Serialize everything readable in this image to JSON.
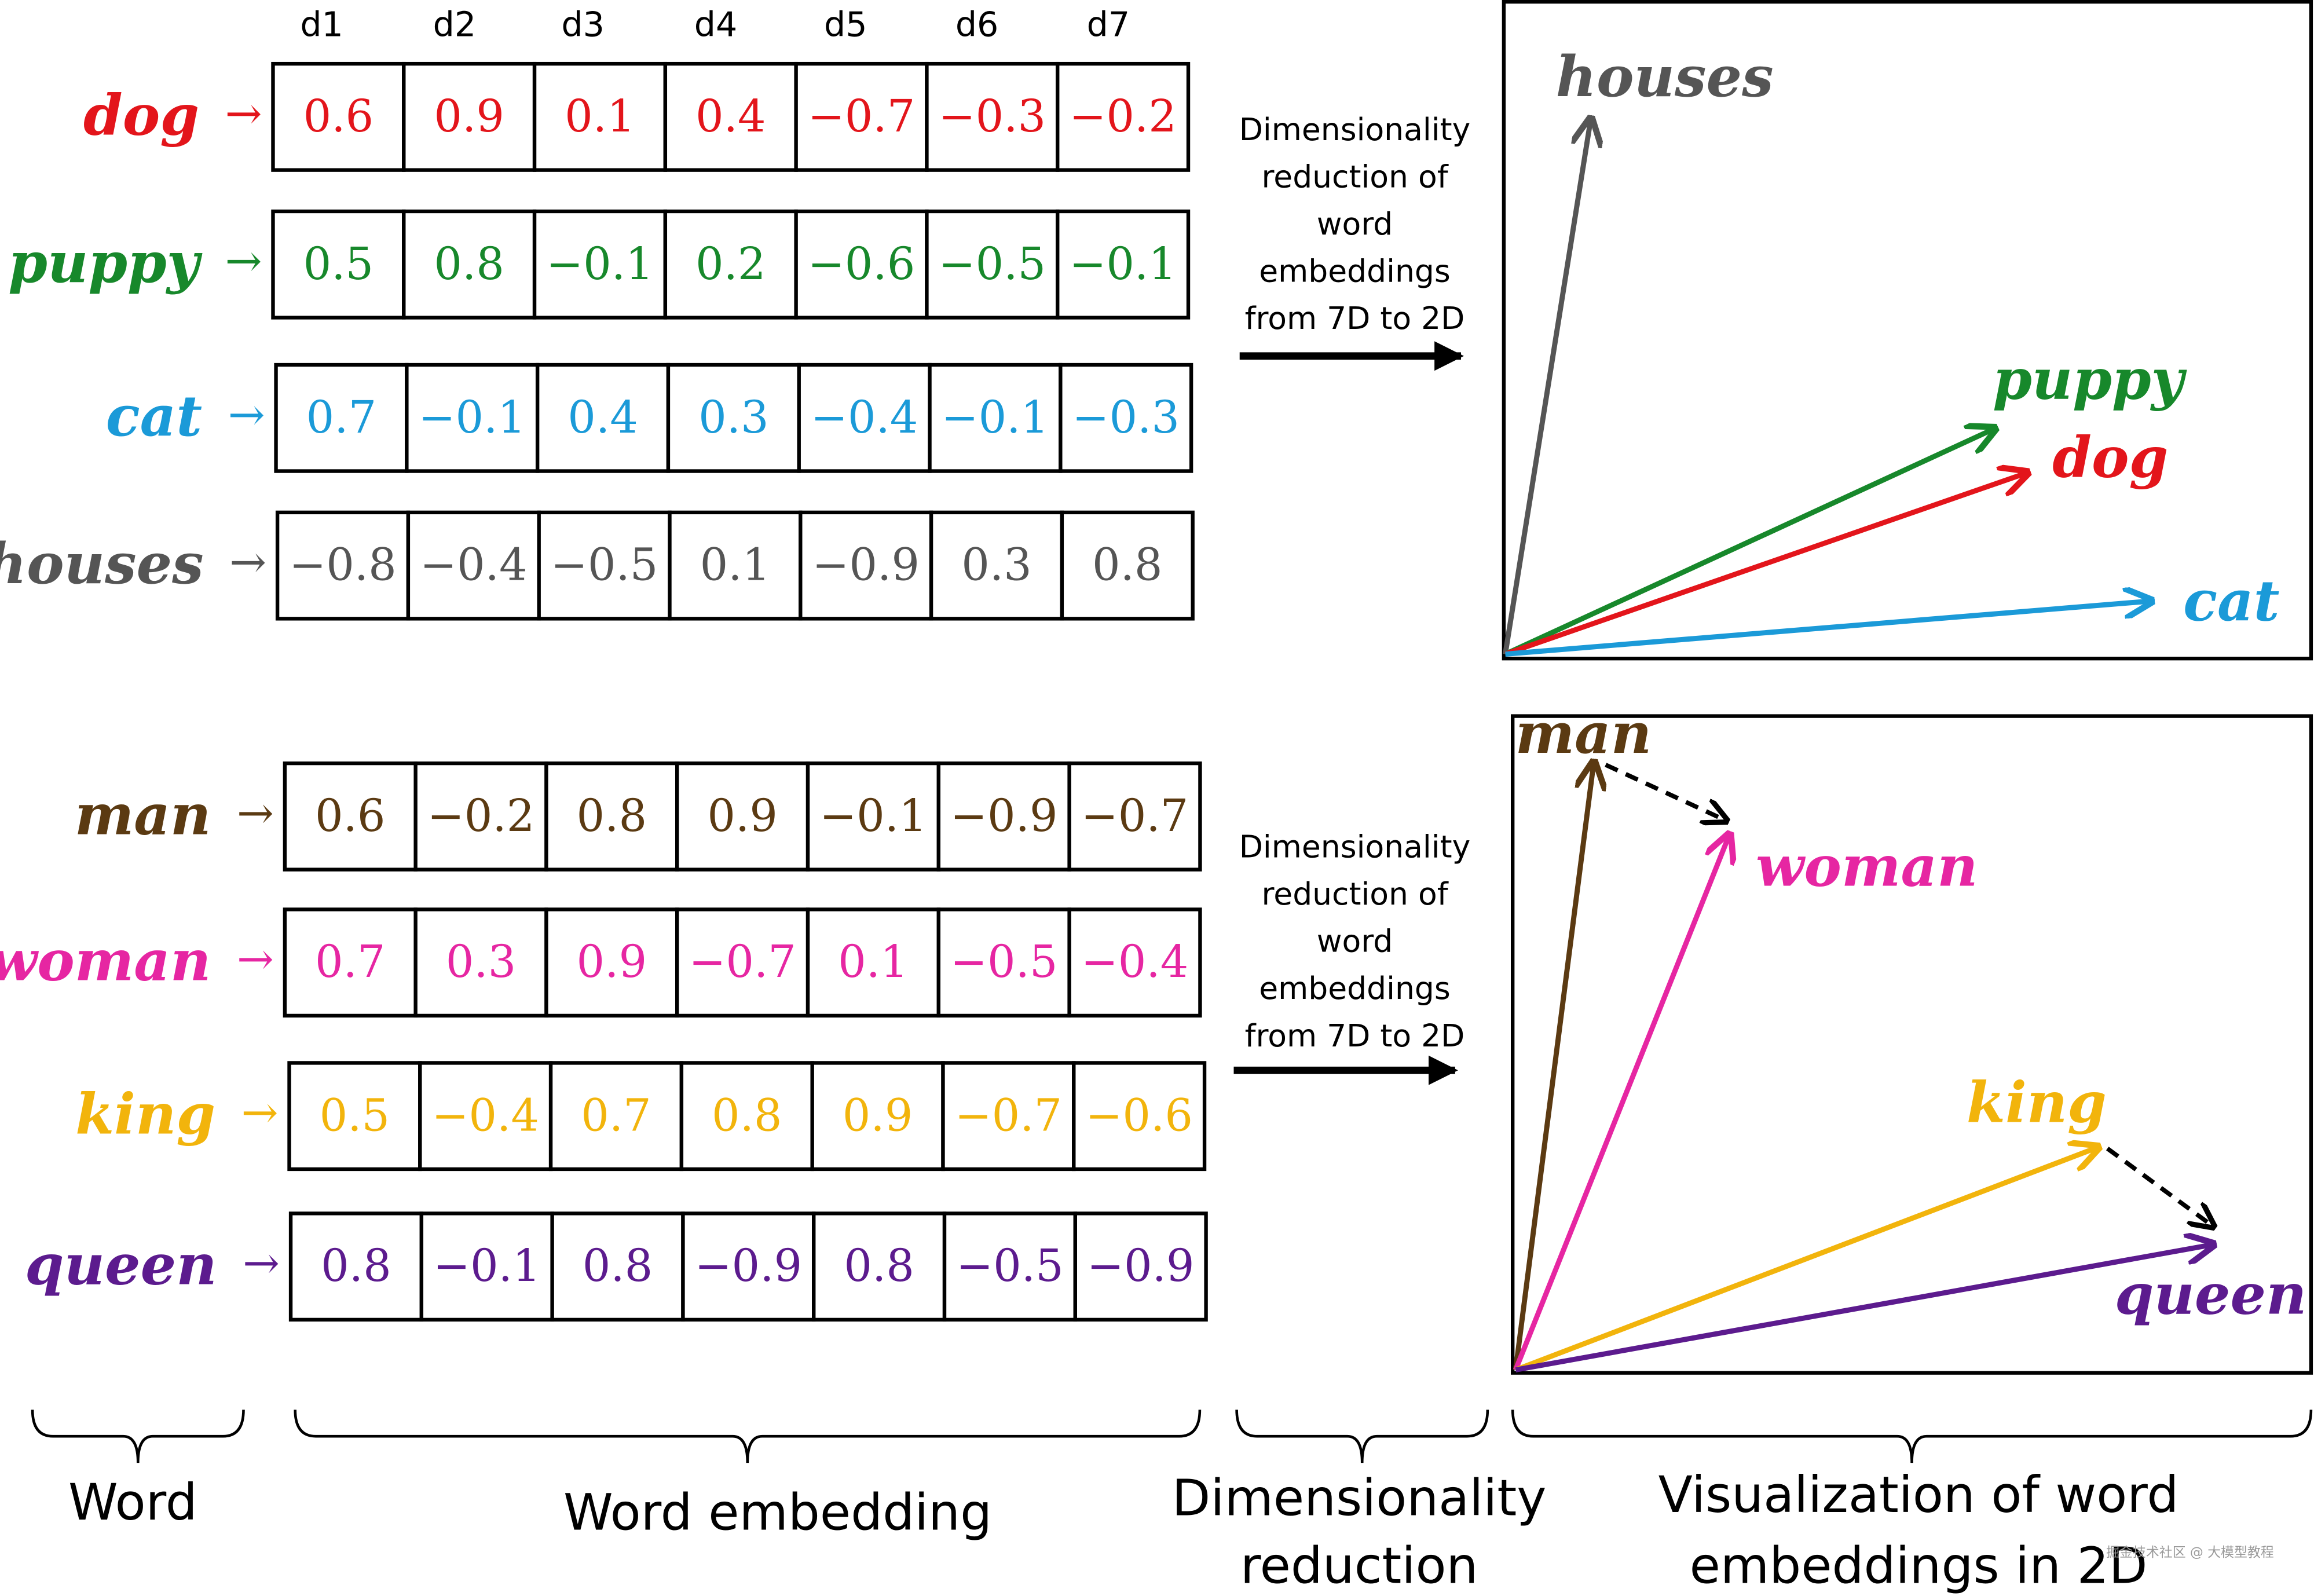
{
  "columns": [
    "d1",
    "d2",
    "d3",
    "d4",
    "d5",
    "d6",
    "d7"
  ],
  "colors": {
    "dog": "#e3151b",
    "puppy": "#17882b",
    "cat": "#1b9ad8",
    "houses": "#555555",
    "man": "#5b3a12",
    "woman": "#e626a2",
    "king": "#f2b40c",
    "queen": "#5c1b8e"
  },
  "top_group": {
    "rows": [
      {
        "word": "dog",
        "values": [
          "0.6",
          "0.9",
          "0.1",
          "0.4",
          "−0.7",
          "−0.3",
          "−0.2"
        ]
      },
      {
        "word": "puppy",
        "values": [
          "0.5",
          "0.8",
          "−0.1",
          "0.2",
          "−0.6",
          "−0.5",
          "−0.1"
        ]
      },
      {
        "word": "cat",
        "values": [
          "0.7",
          "−0.1",
          "0.4",
          "0.3",
          "−0.4",
          "−0.1",
          "−0.3"
        ]
      },
      {
        "word": "houses",
        "values": [
          "−0.8",
          "−0.4",
          "−0.5",
          "0.1",
          "−0.9",
          "0.3",
          "0.8"
        ]
      }
    ],
    "reduction_text": [
      "Dimensionality",
      "reduction of",
      "word",
      "embeddings",
      "from 7D to 2D"
    ],
    "plot_labels": [
      "houses",
      "puppy",
      "dog",
      "cat"
    ]
  },
  "bottom_group": {
    "rows": [
      {
        "word": "man",
        "values": [
          "0.6",
          "−0.2",
          "0.8",
          "0.9",
          "−0.1",
          "−0.9",
          "−0.7"
        ]
      },
      {
        "word": "woman",
        "values": [
          "0.7",
          "0.3",
          "0.9",
          "−0.7",
          "0.1",
          "−0.5",
          "−0.4"
        ]
      },
      {
        "word": "king",
        "values": [
          "0.5",
          "−0.4",
          "0.7",
          "0.8",
          "0.9",
          "−0.7",
          "−0.6"
        ]
      },
      {
        "word": "queen",
        "values": [
          "0.8",
          "−0.1",
          "0.8",
          "−0.9",
          "0.8",
          "−0.5",
          "−0.9"
        ]
      }
    ],
    "reduction_text": [
      "Dimensionality",
      "reduction of",
      "word",
      "embeddings",
      "from 7D to 2D"
    ],
    "plot_labels": [
      "man",
      "woman",
      "king",
      "queen"
    ]
  },
  "arrow_glyph": "→",
  "captions": {
    "word": "Word",
    "embedding": "Word embedding",
    "reduction": [
      "Dimensionality",
      "reduction"
    ],
    "visualization": [
      "Visualization of word",
      "embeddings  in 2D"
    ]
  },
  "watermark": "掘金技术社区 @ 大模型教程"
}
